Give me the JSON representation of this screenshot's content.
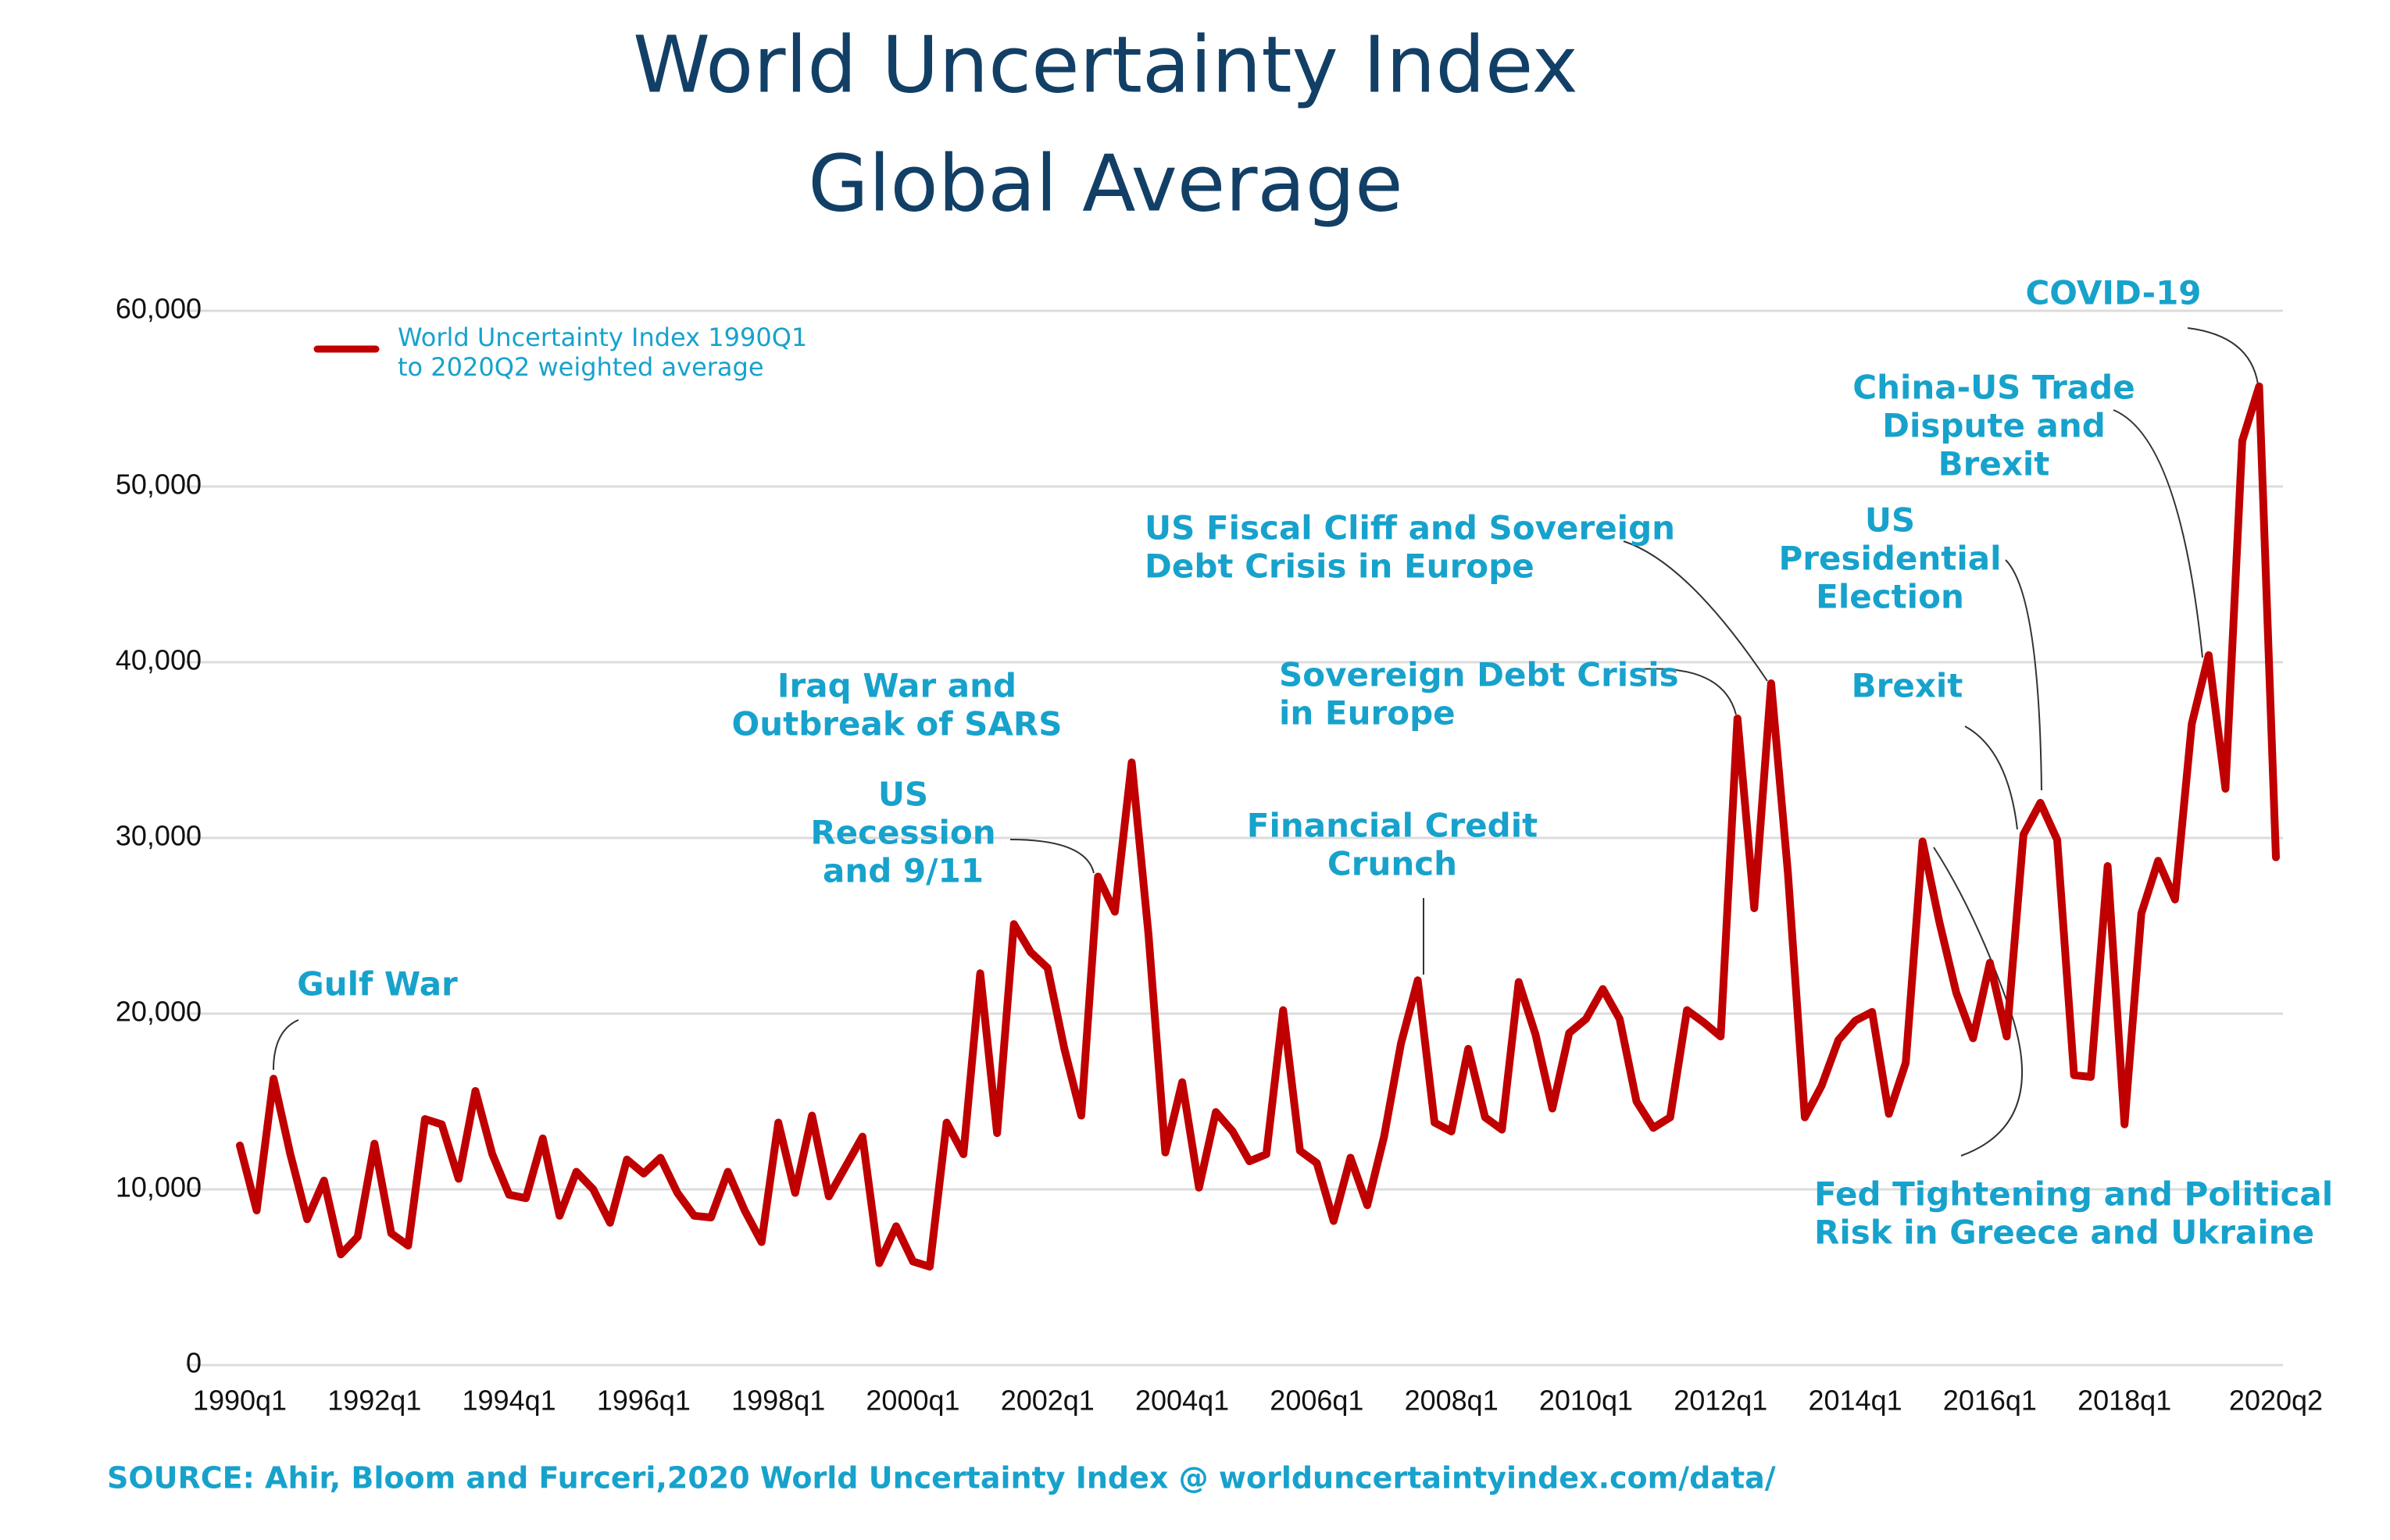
{
  "chart_data": {
    "type": "line",
    "title": "World Uncertainty Index",
    "subtitle": "Global Average",
    "source": "SOURCE: Ahir, Bloom and Furceri,2020 World Uncertainty Index @ worlduncertaintyindex.com/data/",
    "categories": [
      "1990q1",
      null,
      null,
      null,
      null,
      null,
      null,
      null,
      "1992q1",
      null,
      null,
      null,
      null,
      null,
      null,
      null,
      "1994q1",
      null,
      null,
      null,
      null,
      null,
      null,
      null,
      "1996q1",
      null,
      null,
      null,
      null,
      null,
      null,
      null,
      "1998q1",
      null,
      null,
      null,
      null,
      null,
      null,
      null,
      "2000q1",
      null,
      null,
      null,
      null,
      null,
      null,
      null,
      "2002q1",
      null,
      null,
      null,
      null,
      null,
      null,
      null,
      "2004q1",
      null,
      null,
      null,
      null,
      null,
      null,
      null,
      "2006q1",
      null,
      null,
      null,
      null,
      null,
      null,
      null,
      "2008q1",
      null,
      null,
      null,
      null,
      null,
      null,
      null,
      "2010q1",
      null,
      null,
      null,
      null,
      null,
      null,
      null,
      "2012q1",
      null,
      null,
      null,
      null,
      null,
      null,
      null,
      "2014q1",
      null,
      null,
      null,
      null,
      null,
      null,
      null,
      "2016q1",
      null,
      null,
      null,
      null,
      null,
      null,
      null,
      "2018q1",
      null,
      null,
      null,
      null,
      null,
      null,
      null,
      null,
      "2020q2"
    ],
    "series": [
      {
        "name": "World Uncertainty Index 1990Q1 to 2020Q2 weighted average",
        "color": "#c00000",
        "values": [
          12500,
          8800,
          16300,
          12000,
          8300,
          10500,
          6300,
          7300,
          12600,
          7500,
          6800,
          14000,
          13700,
          10600,
          15600,
          12000,
          9700,
          9500,
          12900,
          8500,
          11000,
          10000,
          8100,
          11700,
          10900,
          11800,
          9800,
          8500,
          8400,
          11000,
          8800,
          7000,
          13800,
          9800,
          14200,
          9600,
          11300,
          13000,
          5800,
          7900,
          5900,
          5600,
          13800,
          12000,
          22300,
          13200,
          25100,
          23500,
          22600,
          18000,
          14200,
          27800,
          25800,
          34300,
          24500,
          12100,
          16100,
          10100,
          14400,
          13300,
          11600,
          12000,
          20200,
          12200,
          11500,
          8200,
          11800,
          9100,
          13000,
          18300,
          21900,
          13800,
          13300,
          18000,
          14100,
          13400,
          21800,
          18800,
          14600,
          18900,
          19700,
          21400,
          19700,
          15000,
          13500,
          14100,
          20200,
          19500,
          18700,
          36800,
          26000,
          38800,
          28000,
          14100,
          15900,
          18500,
          19600,
          20100,
          14300,
          17200,
          29800,
          25200,
          21200,
          18600,
          22900,
          18700,
          30200,
          32000,
          29900,
          16500,
          16400,
          28400,
          13700,
          25700,
          28700,
          26500,
          36500,
          40400,
          32800,
          52600,
          55700,
          28900
        ]
      }
    ],
    "ylim": [
      0,
      60000
    ],
    "yticks": [
      0,
      {
        "value": 10000,
        "label": "10,000"
      },
      {
        "value": 20000,
        "label": "20,000"
      },
      {
        "value": 30000,
        "label": "30,000"
      },
      {
        "value": 40000,
        "label": "40,000"
      },
      {
        "value": 50000,
        "label": "50,000"
      },
      {
        "value": 60000,
        "label": "60,000"
      }
    ],
    "grid": true,
    "legend": "upper left",
    "annotations": [
      {
        "lines": [
          "Gulf War"
        ]
      },
      {
        "lines": [
          "US",
          "Recession",
          "and 9/11"
        ]
      },
      {
        "lines": [
          "Iraq War and",
          "Outbreak of SARS"
        ]
      },
      {
        "lines": [
          "Financial Credit",
          "Crunch"
        ]
      },
      {
        "lines": [
          "Sovereign Debt Crisis",
          "in Europe"
        ]
      },
      {
        "lines": [
          "US Fiscal Cliff and Sovereign",
          "Debt Crisis in Europe"
        ]
      },
      {
        "lines": [
          "US",
          "Presidential",
          "Election"
        ]
      },
      {
        "lines": [
          "Brexit"
        ]
      },
      {
        "lines": [
          "China-US Trade",
          "Dispute and",
          "Brexit"
        ]
      },
      {
        "lines": [
          "COVID-19"
        ]
      },
      {
        "lines": [
          "Fed Tightening and Political",
          "Risk in Greece and Ukraine"
        ]
      }
    ]
  }
}
